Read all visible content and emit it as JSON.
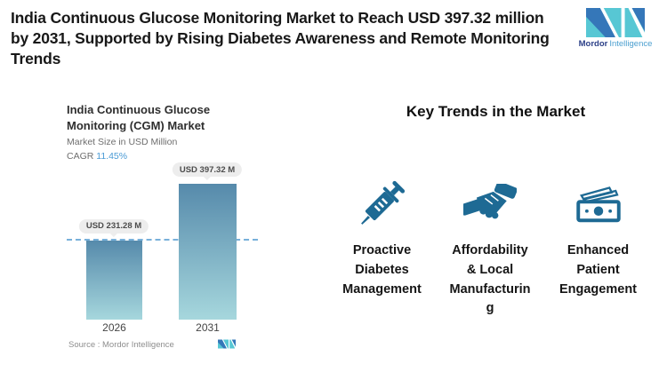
{
  "header": {
    "title": "India Continuous Glucose Monitoring Market to Reach USD 397.32 million by 2031, Supported by Rising Diabetes Awareness and Remote Monitoring Trends",
    "logo": {
      "brand_bold": "Mordor",
      "brand_light": "Intelligence"
    }
  },
  "chart": {
    "title": "India Continuous Glucose Monitoring (CGM) Market",
    "subtitle": "Market Size in USD Million",
    "cagr_label": "CAGR",
    "cagr_value": "11.45%",
    "source": "Source :  Mordor Intelligence"
  },
  "chart_data": {
    "type": "bar",
    "title": "India Continuous Glucose Monitoring (CGM) Market",
    "ylabel": "Market Size in USD Million",
    "categories": [
      "2026",
      "2031"
    ],
    "values": [
      231.28,
      397.32
    ],
    "value_labels": [
      "USD 231.28 M",
      "USD 397.32 M"
    ],
    "cagr": "11.45%",
    "reference_line": 231.28,
    "legend": "none",
    "grid": "off"
  },
  "trends": {
    "heading": "Key Trends in the Market",
    "items": [
      {
        "icon": "syringe-icon",
        "label": "Proactive\nDiabetes\nManagement"
      },
      {
        "icon": "handshake-icon",
        "label": "Affordability\n& Local\nManufacturin\ng"
      },
      {
        "icon": "money-icon",
        "label": "Enhanced\nPatient\nEngagement"
      }
    ]
  },
  "colors": {
    "trend_icon": "#1e6a94",
    "cagr_accent": "#4a9bd5",
    "bar_gradient_top": "#568aab",
    "bar_gradient_bottom": "#a6d7dd",
    "dashed_line": "#77b0da",
    "logo_blue": "#3577b9",
    "logo_teal": "#57c7d4",
    "tooltip_bg": "#ededed"
  }
}
